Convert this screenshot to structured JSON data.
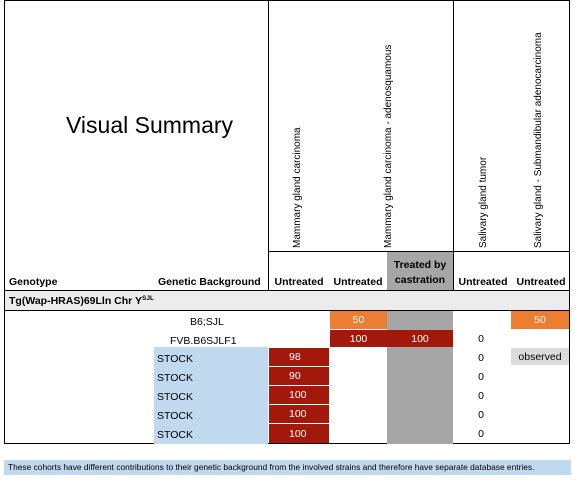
{
  "title": "Visual Summary",
  "columns": {
    "genotype": "Genotype",
    "background": "Genetic Background",
    "phenotypes": [
      {
        "label": "Mammary gland carcinoma"
      },
      {
        "label": "Mammary gland carcinoma - adenosquamous"
      },
      {
        "label": "Salivary gland tumor"
      },
      {
        "label": "Salivary gland - Submandibular adenocarcinoma"
      }
    ],
    "treatments": [
      "Untreated",
      "Untreated",
      "Treated by castration",
      "Untreated",
      "Untreated"
    ]
  },
  "genotype_row": {
    "base": "Tg(Wap-HRAS)69Lln Chr Y",
    "superscript": "SJL"
  },
  "rows": [
    {
      "background": "B6;SJL",
      "cells": [
        "",
        "50",
        "",
        "",
        "50"
      ]
    },
    {
      "background": "FVB.B6SJLF1",
      "cells": [
        "",
        "100",
        "100",
        "0",
        "observed"
      ]
    },
    {
      "background": "STOCK",
      "cells": [
        "98",
        "",
        "",
        "0",
        ""
      ]
    },
    {
      "background": "STOCK",
      "cells": [
        "90",
        "",
        "",
        "0",
        ""
      ]
    },
    {
      "background": "STOCK",
      "cells": [
        "100",
        "",
        "",
        "0",
        ""
      ]
    },
    {
      "background": "STOCK",
      "cells": [
        "100",
        "",
        "",
        "0",
        ""
      ]
    },
    {
      "background": "STOCK",
      "cells": [
        "100",
        "",
        "",
        "0",
        ""
      ]
    }
  ],
  "colors": {
    "stock_fill": "#c1d9ee",
    "high_value": "#a2190c",
    "mid_value": "#ed7d31",
    "castration_column": "#a6a6a6",
    "observed": "#dcdcdc"
  },
  "footnote": "These cohorts have different contributions to their genetic background from the involved strains and therefore have separate database entries."
}
